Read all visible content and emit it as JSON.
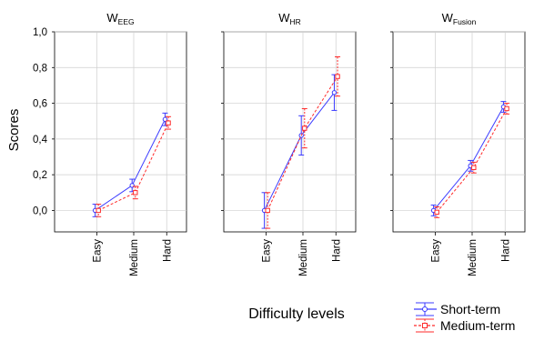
{
  "figure": {
    "ylabel": "Scores",
    "xlabel": "Difficulty levels"
  },
  "legend": {
    "items": [
      {
        "label": "Short-term",
        "color": "#3b3bff",
        "style": "solid",
        "marker": "circle"
      },
      {
        "label": "Medium-term",
        "color": "#ff2a2a",
        "style": "dashed",
        "marker": "square"
      }
    ]
  },
  "chart_data": [
    {
      "type": "line",
      "title": "W",
      "title_sub": "EEG",
      "categories": [
        "Easy",
        "Medium",
        "Hard"
      ],
      "ylim": [
        -0.12,
        1.0
      ],
      "yticks": [
        "1,0",
        "0,8",
        "0,6",
        "0,4",
        "0,2",
        "0,0"
      ],
      "ytick_values": [
        1.0,
        0.8,
        0.6,
        0.4,
        0.2,
        0.0
      ],
      "grid": true,
      "series": [
        {
          "name": "Short-term",
          "color": "#3b3bff",
          "values": [
            0.0,
            0.14,
            0.51
          ],
          "err": [
            0.035,
            0.035,
            0.035
          ]
        },
        {
          "name": "Medium-term",
          "color": "#ff2a2a",
          "values": [
            0.0,
            0.1,
            0.49
          ],
          "err": [
            0.035,
            0.035,
            0.035
          ]
        }
      ]
    },
    {
      "type": "line",
      "title": "W",
      "title_sub": "HR",
      "categories": [
        "Easy",
        "Medium",
        "Hard"
      ],
      "ylim": [
        -0.12,
        1.0
      ],
      "ytick_values": [
        1.0,
        0.8,
        0.6,
        0.4,
        0.2,
        0.0
      ],
      "grid": true,
      "series": [
        {
          "name": "Short-term",
          "color": "#3b3bff",
          "values": [
            0.0,
            0.42,
            0.66
          ],
          "err": [
            0.1,
            0.11,
            0.1
          ]
        },
        {
          "name": "Medium-term",
          "color": "#ff2a2a",
          "values": [
            0.0,
            0.46,
            0.75
          ],
          "err": [
            0.1,
            0.11,
            0.11
          ]
        }
      ]
    },
    {
      "type": "line",
      "title": "W",
      "title_sub": "Fusion",
      "categories": [
        "Easy",
        "Medium",
        "Hard"
      ],
      "ylim": [
        -0.12,
        1.0
      ],
      "ytick_values": [
        1.0,
        0.8,
        0.6,
        0.4,
        0.2,
        0.0
      ],
      "grid": true,
      "series": [
        {
          "name": "Short-term",
          "color": "#3b3bff",
          "values": [
            0.0,
            0.25,
            0.58
          ],
          "err": [
            0.03,
            0.03,
            0.03
          ]
        },
        {
          "name": "Medium-term",
          "color": "#ff2a2a",
          "values": [
            -0.01,
            0.24,
            0.57
          ],
          "err": [
            0.03,
            0.03,
            0.03
          ]
        }
      ]
    }
  ]
}
